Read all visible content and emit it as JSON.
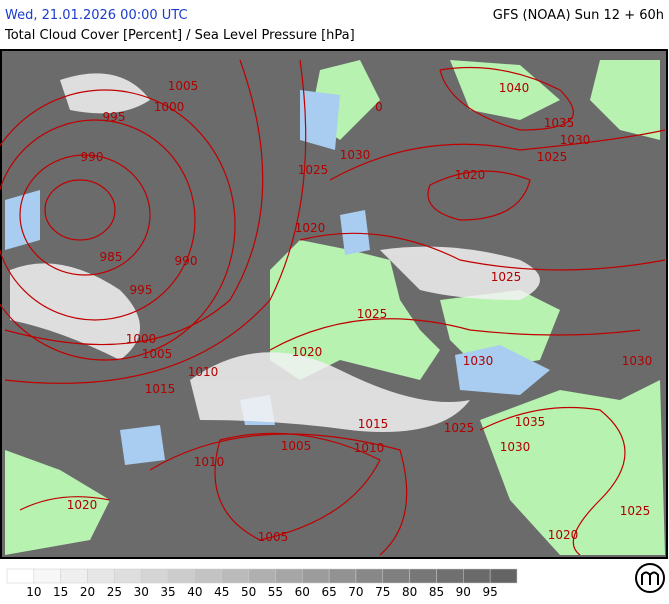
{
  "header": {
    "datetime": "Wed, 21.01.2026 00:00 UTC",
    "model": "GFS (NOAA) Sun 12 + 60h",
    "title": "Total Cloud Cover [Percent] / Sea Level Pressure [hPa]"
  },
  "isobar_labels": [
    "1005",
    "1000",
    "995",
    "990",
    "985",
    "990",
    "995",
    "1000",
    "1005",
    "1010",
    "1015",
    "1025",
    "1030",
    "1020",
    "1025",
    "1020",
    "1030",
    "1015",
    "1010",
    "1005",
    "1010",
    "1005",
    "1020",
    "1025",
    "1030",
    "1035",
    "1030",
    "1025",
    "1020",
    "1025",
    "1020",
    "1025",
    "1030",
    "1035",
    "1040",
    "0"
  ],
  "legend": {
    "ticks": [
      10,
      15,
      20,
      25,
      30,
      35,
      40,
      45,
      50,
      55,
      60,
      65,
      70,
      75,
      80,
      85,
      90,
      95
    ],
    "colors": [
      "#ffffff",
      "#f7f7f7",
      "#efefef",
      "#e6e6e6",
      "#dedede",
      "#d5d5d5",
      "#cccccc",
      "#c3c3c3",
      "#bababa",
      "#b0b0b0",
      "#a6a6a6",
      "#9c9c9c",
      "#929292",
      "#888888",
      "#7f7f7f",
      "#777777",
      "#707070",
      "#6a6a6a",
      "#646464"
    ]
  }
}
